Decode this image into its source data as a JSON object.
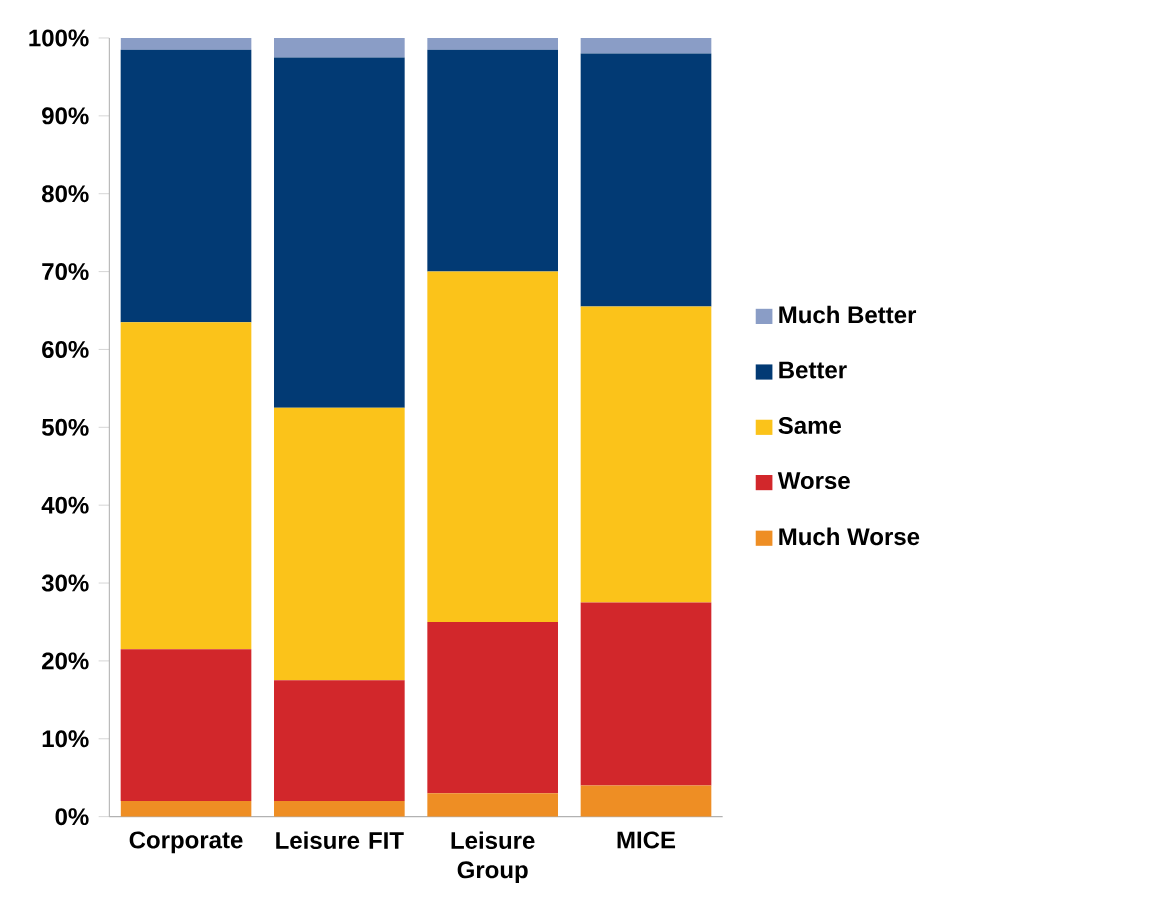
{
  "chart_data": {
    "type": "bar",
    "stacked": true,
    "categories": [
      "Corporate",
      "Leisure FIT",
      "Leisure Group",
      "MICE"
    ],
    "series": [
      {
        "name": "Much Worse",
        "color": "#ee8e24",
        "values": [
          2,
          2,
          3,
          4
        ]
      },
      {
        "name": "Worse",
        "color": "#d2272b",
        "values": [
          19.5,
          15.5,
          22,
          23.5
        ]
      },
      {
        "name": "Same",
        "color": "#fbc31a",
        "values": [
          42,
          35,
          45,
          38
        ]
      },
      {
        "name": "Better",
        "color": "#023a74",
        "values": [
          35,
          45,
          28.5,
          32.5
        ]
      },
      {
        "name": "Much Better",
        "color": "#8a9dc6",
        "values": [
          1.5,
          2.5,
          1.5,
          2
        ]
      }
    ],
    "ylim": [
      0,
      100
    ],
    "yticks": [
      {
        "value": 0,
        "label": "0%"
      },
      {
        "value": 10,
        "label": "10%"
      },
      {
        "value": 20,
        "label": "20%"
      },
      {
        "value": 30,
        "label": "30%"
      },
      {
        "value": 40,
        "label": "40%"
      },
      {
        "value": 50,
        "label": "50%"
      },
      {
        "value": 60,
        "label": "60%"
      },
      {
        "value": 70,
        "label": "70%"
      },
      {
        "value": 80,
        "label": "80%"
      },
      {
        "value": 90,
        "label": "90%"
      },
      {
        "value": 100,
        "label": "100%"
      }
    ],
    "legend": "right",
    "grid": false
  }
}
